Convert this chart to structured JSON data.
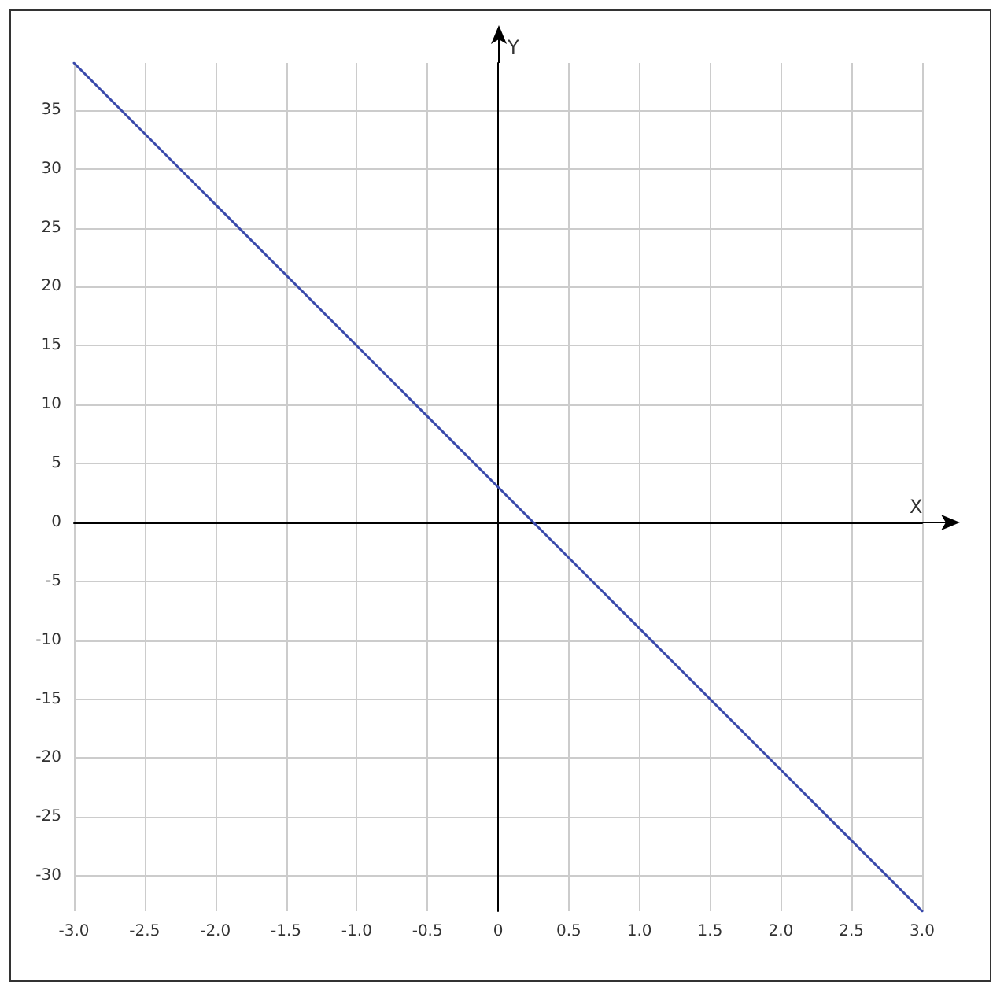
{
  "chart_data": {
    "type": "line",
    "xlabel": "X",
    "ylabel": "Y",
    "x": [
      -3,
      3
    ],
    "series": [
      {
        "color": "#3949ab",
        "values": [
          39,
          -33
        ]
      }
    ],
    "xlim": [
      -3,
      3
    ],
    "ylim": [
      -33,
      39
    ],
    "xticks": [
      {
        "value": -3,
        "label": "-3.0"
      },
      {
        "value": -2.5,
        "label": "-2.5"
      },
      {
        "value": -2,
        "label": "-2.0"
      },
      {
        "value": -1.5,
        "label": "-1.5"
      },
      {
        "value": -1,
        "label": "-1.0"
      },
      {
        "value": -0.5,
        "label": "-0.5"
      },
      0,
      0.5,
      {
        "value": 1,
        "label": "1.0"
      },
      1.5,
      {
        "value": 2,
        "label": "2.0"
      },
      2.5,
      {
        "value": 3,
        "label": "3.0"
      }
    ],
    "yticks": [
      -30,
      -25,
      -20,
      -15,
      -10,
      -5,
      0,
      5,
      10,
      15,
      20,
      25,
      30,
      35
    ],
    "grid": true,
    "marker": "none",
    "line_style": "solid"
  }
}
